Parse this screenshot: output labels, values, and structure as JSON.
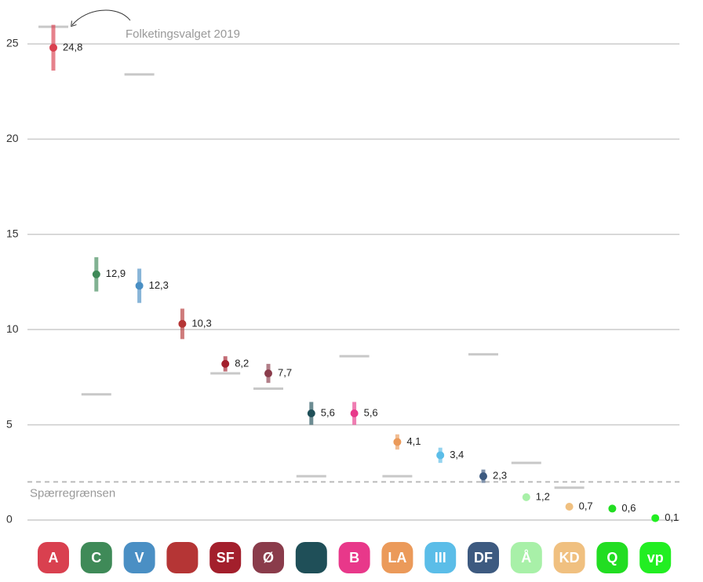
{
  "chart_data": {
    "type": "errorbar",
    "annotation": "Folketingsvalget 2019",
    "categories": [
      "A",
      "C",
      "V",
      null,
      "SF",
      "Ø",
      null,
      "B",
      "LA",
      "III",
      "DF",
      "Å",
      "KD",
      "Q",
      "vp"
    ],
    "values": [
      24.8,
      12.9,
      12.3,
      10.3,
      8.2,
      7.7,
      5.6,
      5.6,
      4.1,
      3.4,
      2.3,
      1.2,
      0.7,
      0.6,
      0.1
    ],
    "value_labels": [
      "24,8",
      "12,9",
      "12,3",
      "10,3",
      "8,2",
      "7,7",
      "5,6",
      "5,6",
      "4,1",
      "3,4",
      "2,3",
      "1,2",
      "0,7",
      "0,6",
      "0,1"
    ],
    "errors": [
      1.2,
      0.9,
      0.9,
      0.8,
      0.4,
      0.5,
      0.6,
      0.6,
      0.4,
      0.4,
      0.35,
      null,
      null,
      null,
      null
    ],
    "previous_values": [
      25.9,
      6.6,
      23.4,
      null,
      7.7,
      6.9,
      2.3,
      8.6,
      2.3,
      null,
      8.7,
      3.0,
      1.7,
      null,
      null
    ],
    "colors": [
      "#d9404f",
      "#3f8a58",
      "#4a8fc4",
      "#b53535",
      "#a31f2c",
      "#8a3c4b",
      "#1f4f58",
      "#e8388a",
      "#eb9a5a",
      "#5bbde8",
      "#3d5a80",
      "#a8f0a8",
      "#f0c080",
      "#22dd22",
      "#22ee22"
    ],
    "threshold": {
      "value": 2,
      "label": "Spærregrænsen"
    },
    "ylim": [
      0,
      27
    ],
    "yticks": [
      0,
      5,
      10,
      15,
      20,
      25
    ],
    "grid": true
  }
}
